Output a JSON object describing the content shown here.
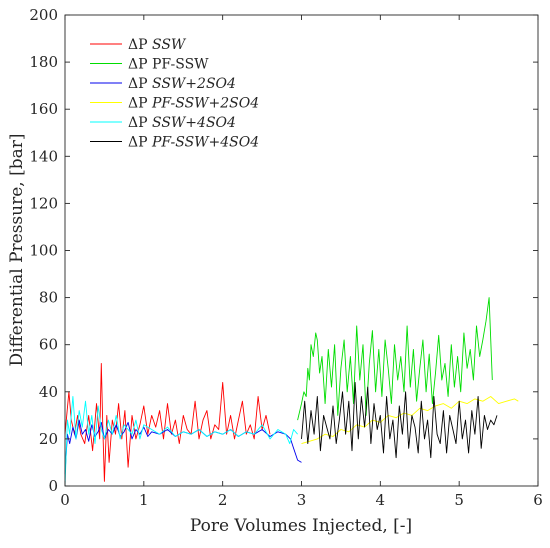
{
  "chart_data": {
    "type": "line",
    "xlabel": "Pore Volumes Injected, [-]",
    "ylabel": "Differential Pressure, [bar]",
    "xlim": [
      0,
      6
    ],
    "ylim": [
      0,
      200
    ],
    "xticks": [
      0,
      1,
      2,
      3,
      4,
      5,
      6
    ],
    "yticks": [
      0,
      20,
      40,
      60,
      80,
      100,
      120,
      140,
      160,
      180,
      200
    ],
    "x_tick_labels": [
      "0",
      "1",
      "2",
      "3",
      "4",
      "5",
      "6"
    ],
    "y_tick_labels": [
      "0",
      "20",
      "40",
      "60",
      "80",
      "100",
      "120",
      "140",
      "160",
      "180",
      "200"
    ],
    "grid": false,
    "legend_position": "top-left",
    "series": [
      {
        "name_prefix": "ΔP ",
        "name_math": "SSW",
        "color": "#ff0000",
        "x": [
          0.0,
          0.05,
          0.08,
          0.12,
          0.16,
          0.2,
          0.25,
          0.3,
          0.35,
          0.4,
          0.44,
          0.46,
          0.48,
          0.5,
          0.53,
          0.56,
          0.6,
          0.64,
          0.68,
          0.72,
          0.76,
          0.8,
          0.85,
          0.9,
          0.95,
          1.0,
          1.05,
          1.1,
          1.15,
          1.2,
          1.25,
          1.3,
          1.35,
          1.4,
          1.45,
          1.5,
          1.55,
          1.6,
          1.65,
          1.7,
          1.75,
          1.8,
          1.85,
          1.9,
          1.95,
          2.0,
          2.05,
          2.1,
          2.15,
          2.2,
          2.25,
          2.3,
          2.35,
          2.4,
          2.45,
          2.5,
          2.55,
          2.6
        ],
        "y": [
          22,
          40,
          28,
          22,
          30,
          22,
          18,
          30,
          15,
          35,
          20,
          52,
          25,
          2,
          30,
          10,
          28,
          22,
          35,
          20,
          32,
          8,
          30,
          20,
          26,
          34,
          22,
          30,
          25,
          32,
          20,
          35,
          22,
          28,
          18,
          30,
          24,
          22,
          36,
          20,
          28,
          32,
          20,
          26,
          24,
          44,
          22,
          30,
          20,
          28,
          36,
          22,
          26,
          20,
          38,
          24,
          30,
          22
        ]
      },
      {
        "name_prefix": "ΔP ",
        "name_math": "PF-SSW",
        "color": "#00dd00",
        "x": [
          2.95,
          3.0,
          3.03,
          3.06,
          3.08,
          3.1,
          3.12,
          3.15,
          3.18,
          3.2,
          3.23,
          3.26,
          3.3,
          3.34,
          3.38,
          3.42,
          3.46,
          3.5,
          3.54,
          3.58,
          3.62,
          3.66,
          3.7,
          3.74,
          3.78,
          3.82,
          3.86,
          3.9,
          3.94,
          3.98,
          4.02,
          4.06,
          4.1,
          4.14,
          4.18,
          4.22,
          4.26,
          4.3,
          4.34,
          4.38,
          4.42,
          4.46,
          4.5,
          4.54,
          4.58,
          4.62,
          4.66,
          4.7,
          4.74,
          4.78,
          4.82,
          4.86,
          4.9,
          4.94,
          4.98,
          5.02,
          5.06,
          5.1,
          5.14,
          5.18,
          5.22,
          5.26,
          5.3,
          5.34,
          5.38,
          5.42
        ],
        "y": [
          28,
          35,
          40,
          38,
          50,
          45,
          60,
          55,
          65,
          62,
          48,
          55,
          35,
          58,
          42,
          60,
          30,
          50,
          62,
          40,
          55,
          35,
          68,
          45,
          60,
          30,
          52,
          66,
          40,
          58,
          38,
          62,
          50,
          35,
          60,
          45,
          55,
          40,
          68,
          42,
          58,
          36,
          50,
          62,
          40,
          56,
          35,
          48,
          64,
          45,
          52,
          38,
          60,
          42,
          55,
          40,
          65,
          50,
          58,
          45,
          68,
          55,
          62,
          70,
          80,
          45
        ]
      },
      {
        "name_prefix": "ΔP ",
        "name_math": "SSW+2SO4",
        "color": "#0000ee",
        "x": [
          0.0,
          0.03,
          0.06,
          0.1,
          0.14,
          0.18,
          0.22,
          0.26,
          0.3,
          0.34,
          0.38,
          0.42,
          0.46,
          0.5,
          0.55,
          0.6,
          0.65,
          0.7,
          0.75,
          0.8,
          0.85,
          0.9,
          0.95,
          1.0,
          1.05,
          1.1,
          1.2,
          1.3,
          1.4,
          1.5,
          1.6,
          1.7,
          1.8,
          1.9,
          2.0,
          2.1,
          2.2,
          2.3,
          2.4,
          2.5,
          2.6,
          2.7,
          2.8,
          2.86,
          2.9,
          2.95,
          3.0
        ],
        "y": [
          5,
          22,
          18,
          25,
          20,
          28,
          22,
          24,
          19,
          26,
          21,
          23,
          27,
          20,
          24,
          22,
          26,
          21,
          23,
          27,
          20,
          24,
          22,
          25,
          21,
          23,
          22,
          24,
          21,
          23,
          22,
          24,
          21,
          23,
          22,
          24,
          21,
          23,
          22,
          24,
          21,
          23,
          22,
          20,
          16,
          11,
          10
        ]
      },
      {
        "name_prefix": "ΔP ",
        "name_math": "PF-SSW+2SO4",
        "color": "#ffff00",
        "x": [
          3.0,
          3.1,
          3.2,
          3.3,
          3.4,
          3.5,
          3.6,
          3.7,
          3.8,
          3.9,
          4.0,
          4.1,
          4.2,
          4.3,
          4.4,
          4.5,
          4.6,
          4.7,
          4.8,
          4.9,
          5.0,
          5.1,
          5.2,
          5.3,
          5.4,
          5.5,
          5.6,
          5.7,
          5.75
        ],
        "y": [
          18,
          19,
          20,
          22,
          21,
          24,
          23,
          26,
          25,
          28,
          27,
          30,
          29,
          31,
          30,
          33,
          32,
          34,
          35,
          33,
          36,
          35,
          37,
          36,
          38,
          35,
          36,
          37,
          36
        ]
      },
      {
        "name_prefix": "ΔP ",
        "name_math": "SSW+4SO4",
        "color": "#00ffff",
        "x": [
          0.0,
          0.03,
          0.06,
          0.1,
          0.14,
          0.18,
          0.22,
          0.26,
          0.3,
          0.34,
          0.38,
          0.42,
          0.46,
          0.5,
          0.55,
          0.6,
          0.65,
          0.7,
          0.75,
          0.8,
          0.85,
          0.9,
          0.95,
          1.0,
          1.1,
          1.2,
          1.3,
          1.4,
          1.5,
          1.6,
          1.7,
          1.8,
          1.9,
          2.0,
          2.1,
          2.2,
          2.3,
          2.4,
          2.5,
          2.6,
          2.7,
          2.8,
          2.85,
          2.9,
          2.95
        ],
        "y": [
          0,
          28,
          22,
          38,
          20,
          32,
          25,
          36,
          22,
          30,
          18,
          34,
          24,
          20,
          28,
          22,
          30,
          20,
          26,
          24,
          22,
          28,
          20,
          26,
          24,
          22,
          25,
          21,
          23,
          22,
          24,
          21,
          23,
          22,
          24,
          21,
          23,
          22,
          26,
          20,
          24,
          22,
          18,
          24,
          22
        ]
      },
      {
        "name_prefix": "ΔP ",
        "name_math": "PF-SSW+4SO4",
        "color": "#000000",
        "x": [
          3.0,
          3.04,
          3.08,
          3.12,
          3.16,
          3.2,
          3.24,
          3.28,
          3.32,
          3.36,
          3.4,
          3.44,
          3.48,
          3.52,
          3.56,
          3.6,
          3.64,
          3.68,
          3.72,
          3.76,
          3.8,
          3.84,
          3.88,
          3.92,
          3.96,
          4.0,
          4.04,
          4.08,
          4.12,
          4.16,
          4.2,
          4.24,
          4.28,
          4.32,
          4.36,
          4.4,
          4.44,
          4.48,
          4.52,
          4.56,
          4.6,
          4.64,
          4.68,
          4.72,
          4.76,
          4.8,
          4.84,
          4.88,
          4.92,
          4.96,
          5.0,
          5.04,
          5.08,
          5.12,
          5.16,
          5.2,
          5.24,
          5.28,
          5.32,
          5.36,
          5.4,
          5.44,
          5.48
        ],
        "y": [
          20,
          36,
          18,
          32,
          22,
          38,
          15,
          30,
          25,
          20,
          34,
          18,
          28,
          40,
          22,
          36,
          15,
          44,
          20,
          38,
          25,
          42,
          18,
          35,
          24,
          30,
          14,
          38,
          20,
          28,
          12,
          34,
          22,
          40,
          16,
          30,
          25,
          14,
          36,
          20,
          28,
          12,
          38,
          22,
          18,
          32,
          14,
          30,
          24,
          18,
          36,
          20,
          28,
          14,
          32,
          22,
          38,
          16,
          30,
          24,
          28,
          26,
          30
        ]
      }
    ]
  }
}
